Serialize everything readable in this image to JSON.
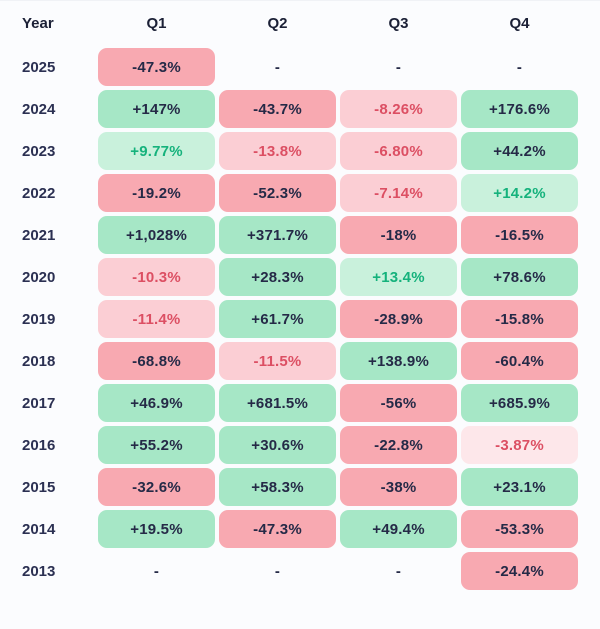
{
  "colors": {
    "page_bg": "#fbfcfe",
    "green_strong_bg": "#a6e7c6",
    "green_light_bg": "#c9f1dc",
    "red_strong_bg": "#f8a9b1",
    "red_light_bg": "#fbced4",
    "red_xlight_bg": "#fde7ea",
    "text_dark": "#252a47",
    "text_green": "#15b27c",
    "text_red": "#dc4f63"
  },
  "header": {
    "year_label": "Year",
    "quarters": [
      "Q1",
      "Q2",
      "Q3",
      "Q4"
    ]
  },
  "table": {
    "rows": [
      {
        "year": "2025",
        "cells": [
          {
            "value": "-47.3%",
            "tone": "rs"
          },
          {
            "value": "-",
            "tone": "none"
          },
          {
            "value": "-",
            "tone": "none"
          },
          {
            "value": "-",
            "tone": "none"
          }
        ]
      },
      {
        "year": "2024",
        "cells": [
          {
            "value": "+147%",
            "tone": "gs"
          },
          {
            "value": "-43.7%",
            "tone": "rs"
          },
          {
            "value": "-8.26%",
            "tone": "rl"
          },
          {
            "value": "+176.6%",
            "tone": "gs"
          }
        ]
      },
      {
        "year": "2023",
        "cells": [
          {
            "value": "+9.77%",
            "tone": "gl"
          },
          {
            "value": "-13.8%",
            "tone": "rl"
          },
          {
            "value": "-6.80%",
            "tone": "rl"
          },
          {
            "value": "+44.2%",
            "tone": "gs"
          }
        ]
      },
      {
        "year": "2022",
        "cells": [
          {
            "value": "-19.2%",
            "tone": "rs"
          },
          {
            "value": "-52.3%",
            "tone": "rs"
          },
          {
            "value": "-7.14%",
            "tone": "rl"
          },
          {
            "value": "+14.2%",
            "tone": "gl"
          }
        ]
      },
      {
        "year": "2021",
        "cells": [
          {
            "value": "+1,028%",
            "tone": "gs"
          },
          {
            "value": "+371.7%",
            "tone": "gs"
          },
          {
            "value": "-18%",
            "tone": "rs"
          },
          {
            "value": "-16.5%",
            "tone": "rs"
          }
        ]
      },
      {
        "year": "2020",
        "cells": [
          {
            "value": "-10.3%",
            "tone": "rl"
          },
          {
            "value": "+28.3%",
            "tone": "gs"
          },
          {
            "value": "+13.4%",
            "tone": "gl"
          },
          {
            "value": "+78.6%",
            "tone": "gs"
          }
        ]
      },
      {
        "year": "2019",
        "cells": [
          {
            "value": "-11.4%",
            "tone": "rl"
          },
          {
            "value": "+61.7%",
            "tone": "gs"
          },
          {
            "value": "-28.9%",
            "tone": "rs"
          },
          {
            "value": "-15.8%",
            "tone": "rs"
          }
        ]
      },
      {
        "year": "2018",
        "cells": [
          {
            "value": "-68.8%",
            "tone": "rs"
          },
          {
            "value": "-11.5%",
            "tone": "rl"
          },
          {
            "value": "+138.9%",
            "tone": "gs"
          },
          {
            "value": "-60.4%",
            "tone": "rs"
          }
        ]
      },
      {
        "year": "2017",
        "cells": [
          {
            "value": "+46.9%",
            "tone": "gs"
          },
          {
            "value": "+681.5%",
            "tone": "gs"
          },
          {
            "value": "-56%",
            "tone": "rs"
          },
          {
            "value": "+685.9%",
            "tone": "gs"
          }
        ]
      },
      {
        "year": "2016",
        "cells": [
          {
            "value": "+55.2%",
            "tone": "gs"
          },
          {
            "value": "+30.6%",
            "tone": "gs"
          },
          {
            "value": "-22.8%",
            "tone": "rs"
          },
          {
            "value": "-3.87%",
            "tone": "rx"
          }
        ]
      },
      {
        "year": "2015",
        "cells": [
          {
            "value": "-32.6%",
            "tone": "rs"
          },
          {
            "value": "+58.3%",
            "tone": "gs"
          },
          {
            "value": "-38%",
            "tone": "rs"
          },
          {
            "value": "+23.1%",
            "tone": "gs"
          }
        ]
      },
      {
        "year": "2014",
        "cells": [
          {
            "value": "+19.5%",
            "tone": "gs"
          },
          {
            "value": "-47.3%",
            "tone": "rs"
          },
          {
            "value": "+49.4%",
            "tone": "gs"
          },
          {
            "value": "-53.3%",
            "tone": "rs"
          }
        ]
      },
      {
        "year": "2013",
        "cells": [
          {
            "value": "-",
            "tone": "none"
          },
          {
            "value": "-",
            "tone": "none"
          },
          {
            "value": "-",
            "tone": "none"
          },
          {
            "value": "-24.4%",
            "tone": "rs"
          }
        ]
      }
    ]
  },
  "chart_data": {
    "type": "heatmap",
    "columns": [
      "Q1",
      "Q2",
      "Q3",
      "Q4"
    ],
    "years": [
      "2025",
      "2024",
      "2023",
      "2022",
      "2021",
      "2020",
      "2019",
      "2018",
      "2017",
      "2016",
      "2015",
      "2014",
      "2013"
    ],
    "values_pct": [
      [
        -47.3,
        null,
        null,
        null
      ],
      [
        147,
        -43.7,
        -8.26,
        176.6
      ],
      [
        9.77,
        -13.8,
        -6.8,
        44.2
      ],
      [
        -19.2,
        -52.3,
        -7.14,
        14.2
      ],
      [
        1028,
        371.7,
        -18,
        -16.5
      ],
      [
        -10.3,
        28.3,
        13.4,
        78.6
      ],
      [
        -11.4,
        61.7,
        -28.9,
        -15.8
      ],
      [
        -68.8,
        -11.5,
        138.9,
        -60.4
      ],
      [
        46.9,
        681.5,
        -56,
        685.9
      ],
      [
        55.2,
        30.6,
        -22.8,
        -3.87
      ],
      [
        -32.6,
        58.3,
        -38,
        23.1
      ],
      [
        19.5,
        -47.3,
        49.4,
        -53.3
      ],
      [
        null,
        null,
        null,
        -24.4
      ]
    ],
    "legend_position": "none",
    "grid": false
  }
}
